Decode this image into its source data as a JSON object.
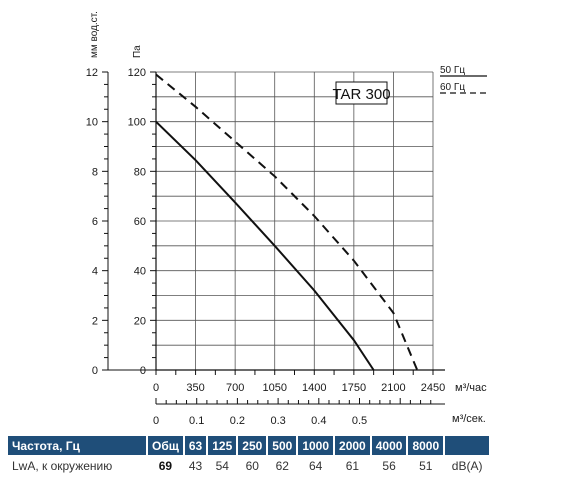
{
  "chart_data": {
    "type": "line",
    "title": "TAR 300",
    "ylabel": "Па",
    "ylabel_secondary": "мм вод.ст.",
    "xlabel": "м³/час",
    "xlabel_secondary": "м³/сек.",
    "xlim": [
      0,
      2450
    ],
    "ylim": [
      0,
      120
    ],
    "ylim_secondary": [
      0,
      12
    ],
    "x_ticks": [
      "0",
      "350",
      "700",
      "1050",
      "1400",
      "1750",
      "2100",
      "2450"
    ],
    "y_ticks": [
      "0",
      "20",
      "40",
      "60",
      "80",
      "100",
      "120"
    ],
    "y2_ticks": [
      "0",
      "2",
      "4",
      "6",
      "8",
      "10",
      "12"
    ],
    "x2_ticks": [
      "0",
      "0.1",
      "0.2",
      "0.3",
      "0.4",
      "0.5"
    ],
    "grid": true,
    "legend_placement": "top-right",
    "series": [
      {
        "name": "50 Гц",
        "style": "solid",
        "x": [
          0,
          350,
          700,
          1050,
          1400,
          1750,
          1925
        ],
        "y": [
          100,
          84.5,
          67.5,
          50,
          32,
          12,
          0
        ]
      },
      {
        "name": "60 Гц",
        "style": "dashed",
        "x": [
          0,
          350,
          700,
          1050,
          1400,
          1750,
          2100,
          2310
        ],
        "y": [
          119,
          106,
          92,
          78,
          62,
          44,
          23,
          0
        ]
      }
    ]
  },
  "sound_table": {
    "headers": [
      "Частота, Гц",
      "Общ",
      "63",
      "125",
      "250",
      "500",
      "1000",
      "2000",
      "4000",
      "8000",
      ""
    ],
    "row_label": "LwA, к окружению",
    "values": [
      "69",
      "43",
      "54",
      "60",
      "62",
      "64",
      "61",
      "56",
      "51"
    ],
    "unit": "dB(A)"
  },
  "colors": {
    "table_header_bg": "#1f4e79",
    "curve": "#111111",
    "grid": "#444444"
  }
}
